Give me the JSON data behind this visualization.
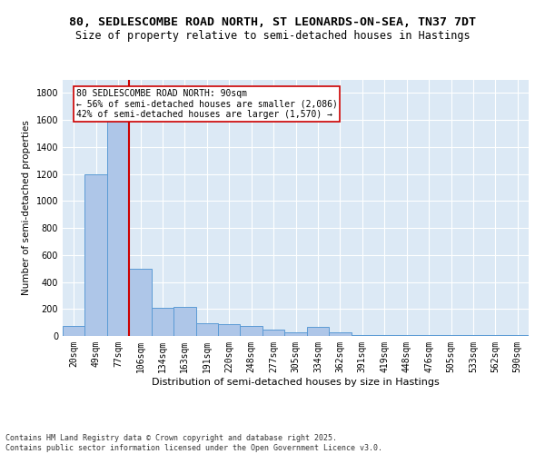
{
  "title1": "80, SEDLESCOMBE ROAD NORTH, ST LEONARDS-ON-SEA, TN37 7DT",
  "title2": "Size of property relative to semi-detached houses in Hastings",
  "xlabel": "Distribution of semi-detached houses by size in Hastings",
  "ylabel": "Number of semi-detached properties",
  "categories": [
    "20sqm",
    "49sqm",
    "77sqm",
    "106sqm",
    "134sqm",
    "163sqm",
    "191sqm",
    "220sqm",
    "248sqm",
    "277sqm",
    "305sqm",
    "334sqm",
    "362sqm",
    "391sqm",
    "419sqm",
    "448sqm",
    "476sqm",
    "505sqm",
    "533sqm",
    "562sqm",
    "590sqm"
  ],
  "values": [
    75,
    1200,
    1650,
    500,
    210,
    215,
    95,
    90,
    75,
    50,
    30,
    65,
    25,
    10,
    8,
    8,
    8,
    8,
    8,
    8,
    8
  ],
  "bar_color": "#aec6e8",
  "bar_edge_color": "#5b9bd5",
  "property_bin_index": 2,
  "annotation_text": "80 SEDLESCOMBE ROAD NORTH: 90sqm\n← 56% of semi-detached houses are smaller (2,086)\n42% of semi-detached houses are larger (1,570) →",
  "vline_color": "#cc0000",
  "annotation_box_color": "#ffffff",
  "annotation_box_edge": "#cc0000",
  "plot_bg": "#dce9f5",
  "ylim": [
    0,
    1900
  ],
  "yticks": [
    0,
    200,
    400,
    600,
    800,
    1000,
    1200,
    1400,
    1600,
    1800
  ],
  "footer": "Contains HM Land Registry data © Crown copyright and database right 2025.\nContains public sector information licensed under the Open Government Licence v3.0.",
  "title1_fontsize": 9.5,
  "title2_fontsize": 8.5,
  "xlabel_fontsize": 8,
  "ylabel_fontsize": 7.5,
  "tick_fontsize": 7,
  "annotation_fontsize": 7,
  "footer_fontsize": 6
}
